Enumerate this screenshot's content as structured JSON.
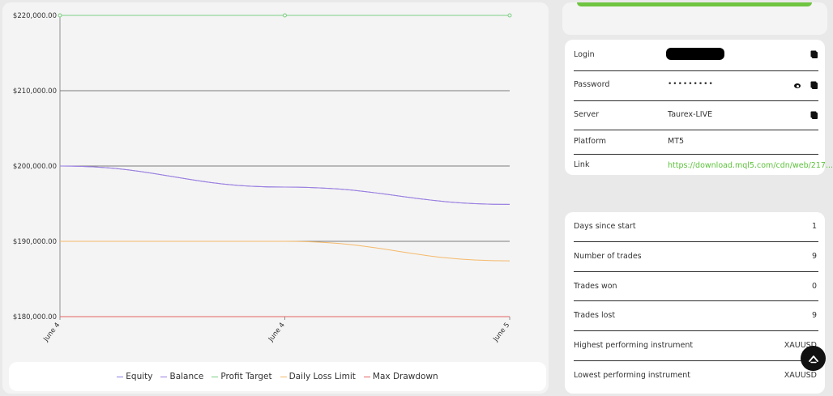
{
  "chart_data": {
    "type": "line",
    "x": [
      "June 4",
      "June 4",
      "June 5"
    ],
    "ylim": [
      180000,
      220000
    ],
    "y_ticks": [
      "$220,000.00",
      "$210,000.00",
      "$200,000.00",
      "$190,000.00",
      "$180,000.00"
    ],
    "y_tick_values": [
      220000,
      210000,
      200000,
      190000,
      180000
    ],
    "grid": "horizontal",
    "legend_position": "bottom",
    "series": [
      {
        "name": "Equity",
        "color": "#8a7ee6",
        "values": [
          200000,
          197200,
          194900
        ]
      },
      {
        "name": "Balance",
        "color": "#9b7fe0",
        "values": [
          200000,
          197200,
          194900
        ]
      },
      {
        "name": "Profit Target",
        "color": "#7ccf83",
        "values": [
          220000,
          220000,
          220000
        ]
      },
      {
        "name": "Daily Loss Limit",
        "color": "#f5b96a",
        "values": [
          190000,
          190000,
          187400
        ]
      },
      {
        "name": "Max Drawdown",
        "color": "#e46464",
        "values": [
          180000,
          180000,
          180000
        ]
      }
    ]
  },
  "credentials": {
    "login_label": "Login",
    "password_label": "Password",
    "password_value": "•••••••••",
    "server_label": "Server",
    "server_value": "Taurex-LIVE",
    "platform_label": "Platform",
    "platform_value": "MT5",
    "link_label": "Link",
    "link_value": "https://download.mql5.com/cdn/web/217..."
  },
  "stats": [
    {
      "label": "Days since start",
      "value": "1"
    },
    {
      "label": "Number of trades",
      "value": "9"
    },
    {
      "label": "Trades won",
      "value": "0"
    },
    {
      "label": "Trades lost",
      "value": "9"
    },
    {
      "label": "Highest performing instrument",
      "value": "XAUUSD"
    },
    {
      "label": "Lowest performing instrument",
      "value": "XAUUSD"
    }
  ],
  "icons": {
    "copy": "copy-icon",
    "eye": "eye-icon",
    "fab": "chevron-up-icon"
  }
}
